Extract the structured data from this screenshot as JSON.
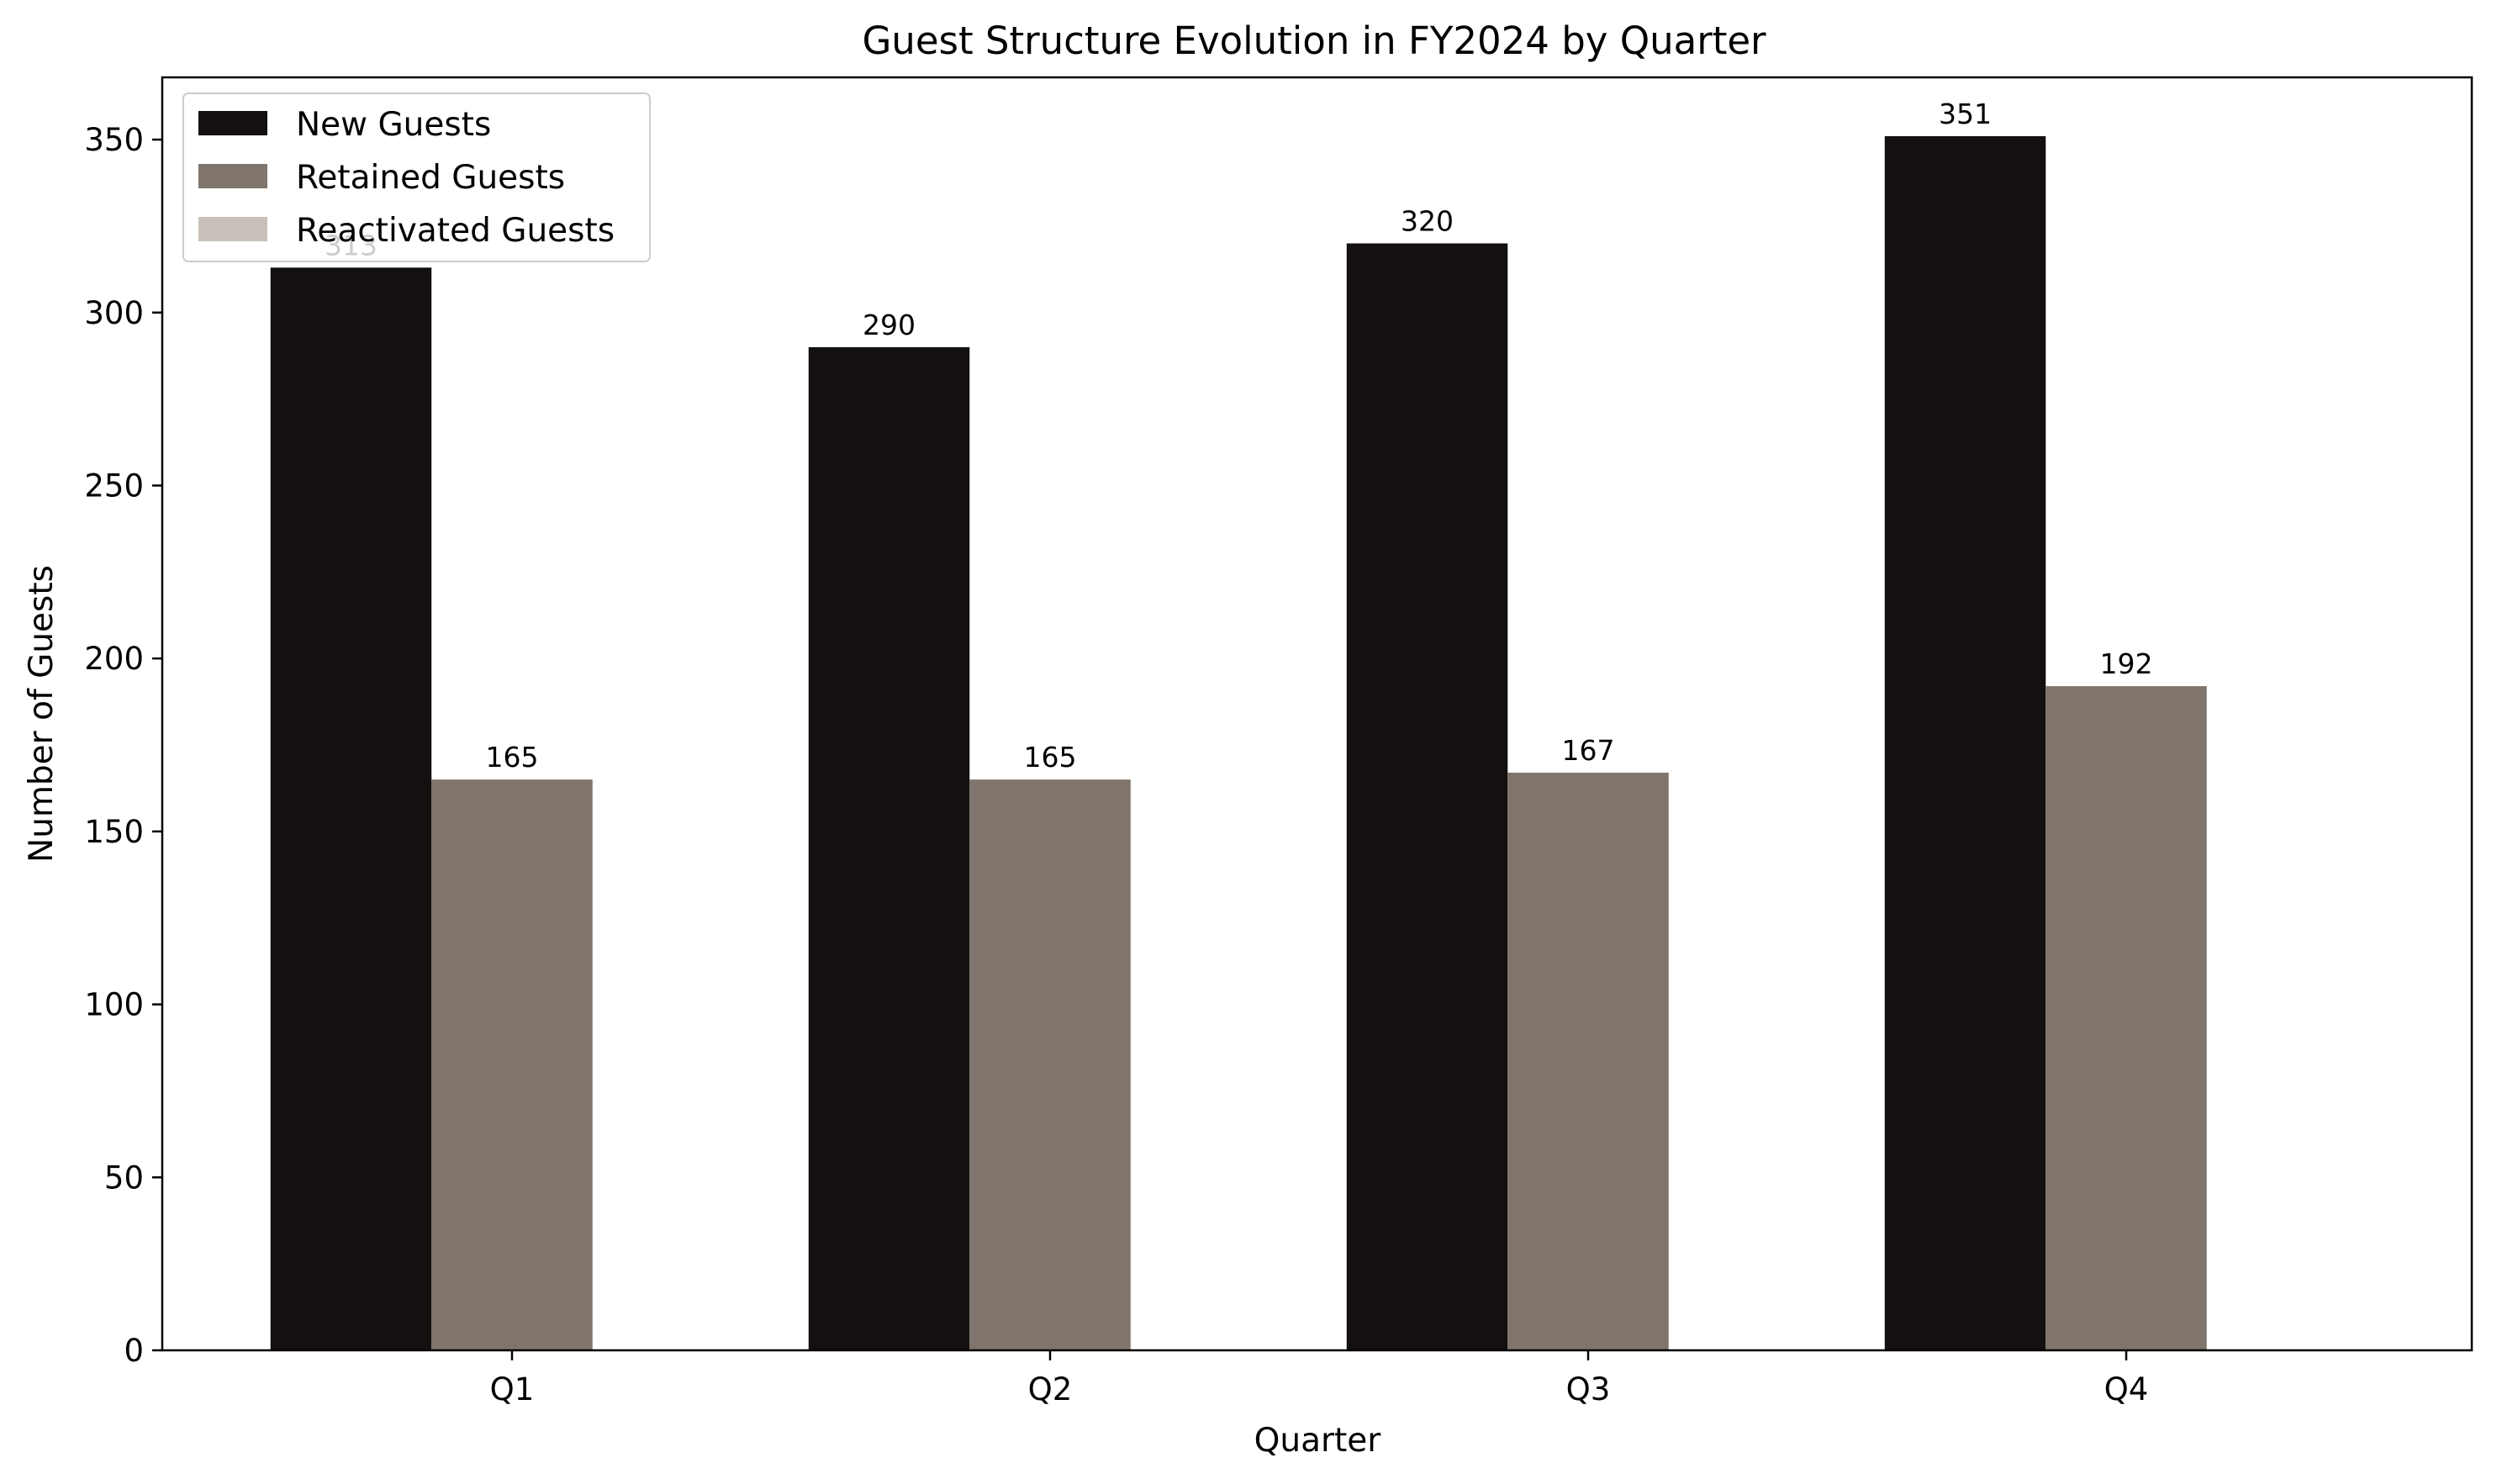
{
  "chart_data": {
    "type": "bar",
    "title": "Guest Structure Evolution in FY2024 by Quarter",
    "xlabel": "Quarter",
    "ylabel": "Number of Guests",
    "categories": [
      "Q1",
      "Q2",
      "Q3",
      "Q4"
    ],
    "ylim": [
      0,
      368
    ],
    "yticks": [
      0,
      50,
      100,
      150,
      200,
      250,
      300,
      350
    ],
    "legend_position": "top-left",
    "grid": false,
    "series": [
      {
        "name": "New Guests",
        "color": "#141010",
        "values": [
          313,
          290,
          320,
          351
        ]
      },
      {
        "name": "Retained Guests",
        "color": "#7f756c",
        "values": [
          165,
          165,
          167,
          192
        ]
      },
      {
        "name": "Reactivated Guests",
        "color": "#c9c1b9",
        "values": [
          0,
          0,
          0,
          0
        ]
      }
    ]
  }
}
